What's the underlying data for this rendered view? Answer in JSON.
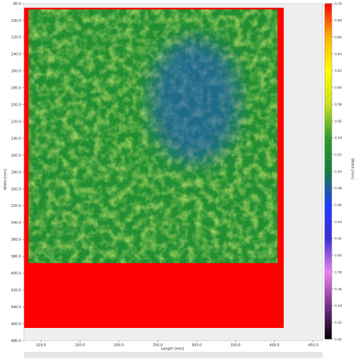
{
  "chart_data": {
    "type": "heatmap",
    "title": "",
    "xlabel": "Length [mm]",
    "ylabel": "Width [mm]",
    "colorbar_label": "Width [mm]",
    "x_ticks": [
      "100.0",
      "150.0",
      "200.0",
      "250.0",
      "300.0",
      "350.0",
      "400.0",
      "450.0"
    ],
    "y_ticks": [
      "80.0",
      "100.0",
      "120.0",
      "140.0",
      "160.0",
      "180.0",
      "200.0",
      "220.0",
      "240.0",
      "260.0",
      "280.0",
      "300.0",
      "320.0",
      "340.0",
      "360.0",
      "380.0",
      "400.0",
      "420.0",
      "440.0",
      "460.0",
      "480.0"
    ],
    "xlim": [
      78.0,
      462.0
    ],
    "ylim": [
      480.0,
      80.0
    ],
    "grid": false,
    "colorbar": {
      "ticks": [
        "0.70",
        "0.68",
        "0.66",
        "0.64",
        "0.62",
        "0.60",
        "0.58",
        "0.56",
        "0.54",
        "0.52",
        "0.50",
        "0.48",
        "0.46",
        "0.44",
        "0.42",
        "0.40",
        "0.38",
        "0.36",
        "0.34",
        "0.32",
        "0.30"
      ],
      "vmin": 0.3,
      "vmax": 0.7,
      "colors": [
        "#000000",
        "#7a2e8c",
        "#ee82ee",
        "#3b2fd9",
        "#1e3cff",
        "#137f3a",
        "#2e9e2a",
        "#c8e020",
        "#ffff00",
        "#ffb000",
        "#ff0000"
      ]
    },
    "regions": [
      {
        "label": "background",
        "x": [
          78.0,
          462.0
        ],
        "y": [
          80.0,
          480.0
        ],
        "value": null
      },
      {
        "label": "saturated",
        "x": [
          78.0,
          412.0
        ],
        "y": [
          85.0,
          465.0
        ],
        "value": 0.7
      },
      {
        "label": "plate",
        "x": [
          84.0,
          404.0
        ],
        "y": [
          87.0,
          388.0
        ],
        "value": 0.52
      },
      {
        "label": "low-pocket",
        "x": [
          240.0,
          355.0
        ],
        "y": [
          120.0,
          270.0
        ],
        "value": 0.46
      }
    ],
    "frame_lines": {
      "vertical_x": [
        85.0,
        98.0,
        382.0,
        398.0
      ],
      "horizontal_y": [
        90.0,
        108.0,
        360.0,
        372.0,
        384.0
      ],
      "value": 0.5
    }
  }
}
